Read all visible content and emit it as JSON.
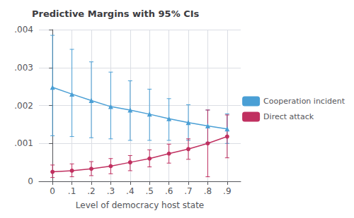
{
  "chart_data": {
    "type": "line",
    "title": "Predictive Margins with 95% CIs",
    "xlabel": "Level of democracy host state",
    "x": [
      0,
      0.1,
      0.2,
      0.3,
      0.4,
      0.5,
      0.6,
      0.7,
      0.8,
      0.9
    ],
    "series": [
      {
        "name": "Cooperation incident",
        "color": "#4a9fd5",
        "marker": "triangle",
        "values": [
          0.00248,
          0.0023,
          0.00213,
          0.00197,
          0.00188,
          0.00177,
          0.00165,
          0.00155,
          0.00146,
          0.00138
        ],
        "upper": [
          0.00385,
          0.00348,
          0.00315,
          0.00288,
          0.00265,
          0.00243,
          0.00218,
          0.00202,
          0.00188,
          0.00178
        ],
        "lower": [
          0.0012,
          0.00118,
          0.00115,
          0.00112,
          0.00108,
          0.00108,
          0.00108,
          0.00108,
          0.00103,
          0.001
        ]
      },
      {
        "name": "Direct attack",
        "color": "#c03060",
        "marker": "circle",
        "values": [
          0.00025,
          0.00028,
          0.00033,
          0.0004,
          0.0005,
          0.0006,
          0.00073,
          0.00085,
          0.001,
          0.00118
        ],
        "upper": [
          0.00043,
          0.00046,
          0.00052,
          0.0006,
          0.00068,
          0.00083,
          0.00098,
          0.00112,
          0.00188,
          0.00175
        ],
        "lower": [
          0.0001,
          0.00012,
          0.00015,
          0.0002,
          0.00028,
          0.00038,
          0.00048,
          0.00058,
          0.00012,
          0.00062
        ]
      }
    ],
    "xlim": [
      -0.07,
      0.97
    ],
    "xticks": [
      0,
      {
        "value": 0.1,
        "label": ".1"
      },
      {
        "value": 0.2,
        "label": ".2"
      },
      {
        "value": 0.3,
        "label": ".3"
      },
      {
        "value": 0.4,
        "label": ".4"
      },
      {
        "value": 0.5,
        "label": ".5"
      },
      {
        "value": 0.6,
        "label": ".6"
      },
      {
        "value": 0.7,
        "label": ".7"
      },
      {
        "value": 0.8,
        "label": ".8"
      },
      {
        "value": 0.9,
        "label": ".9"
      }
    ],
    "ylim": [
      0,
      0.004
    ],
    "yticks": [
      0,
      {
        "value": 0.001,
        "label": ".001"
      },
      {
        "value": 0.002,
        "label": ".002"
      },
      {
        "value": 0.003,
        "label": ".003"
      },
      {
        "value": 0.004,
        "label": ".004"
      }
    ],
    "grid": true,
    "legend": "right"
  }
}
